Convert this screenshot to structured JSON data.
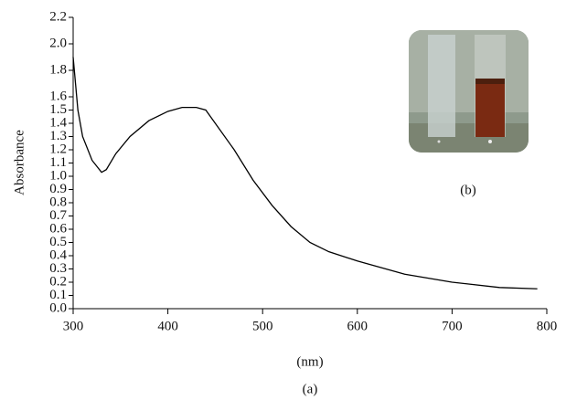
{
  "chart_data": {
    "type": "line",
    "y_label": "Absorbance",
    "x_label": "(nm)",
    "caption": "(a)",
    "inset_caption": "(b)",
    "xlim": [
      300,
      800
    ],
    "xticks": [
      300,
      400,
      500,
      600,
      700,
      800
    ],
    "ylim": [
      0,
      2.2
    ],
    "yticks": [
      {
        "value": 0,
        "label": "0.0"
      },
      0.1,
      0.2,
      0.3,
      0.4,
      0.5,
      0.6,
      0.7,
      0.8,
      0.9,
      {
        "value": 1,
        "label": "1.0"
      },
      1.1,
      1.2,
      1.3,
      1.4,
      1.5,
      1.6,
      1.8,
      {
        "value": 2,
        "label": "2.0"
      },
      2.2
    ],
    "series": [
      {
        "color": "#000000",
        "x": [
          300,
          305,
          310,
          320,
          330,
          335,
          345,
          360,
          380,
          400,
          415,
          430,
          440,
          450,
          470,
          490,
          510,
          530,
          550,
          570,
          600,
          650,
          700,
          750,
          790
        ],
        "values": [
          1.9,
          1.5,
          1.3,
          1.12,
          1.03,
          1.05,
          1.17,
          1.3,
          1.42,
          1.49,
          1.52,
          1.52,
          1.5,
          1.4,
          1.2,
          0.97,
          0.78,
          0.62,
          0.5,
          0.43,
          0.36,
          0.26,
          0.2,
          0.16,
          0.15
        ]
      }
    ]
  }
}
